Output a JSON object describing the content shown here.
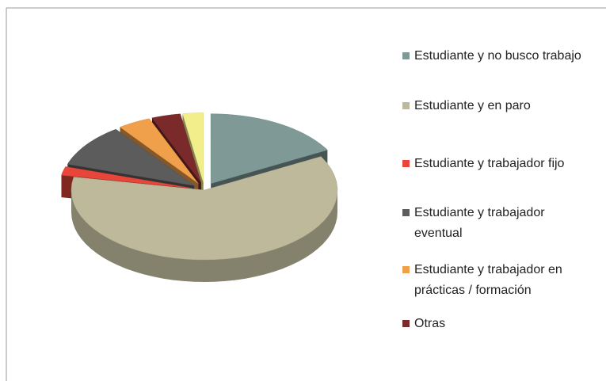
{
  "chart_data": {
    "type": "pie3d",
    "categories": [
      "Estudiante y no busco trabajo",
      "Estudiante y en paro",
      "Estudiante y trabajador fijo",
      "Estudiante y trabajador eventual",
      "Estudiante y trabajador en prácticas / formación",
      "Otras",
      null
    ],
    "values": [
      17,
      61,
      2,
      10,
      4,
      3.5,
      2.5
    ],
    "colors": [
      "#7f9a96",
      "#bdb99a",
      "#e8463a",
      "#5c5c5c",
      "#f0a04b",
      "#7a2a2a",
      "#f3ee8c"
    ],
    "legend": "right"
  }
}
